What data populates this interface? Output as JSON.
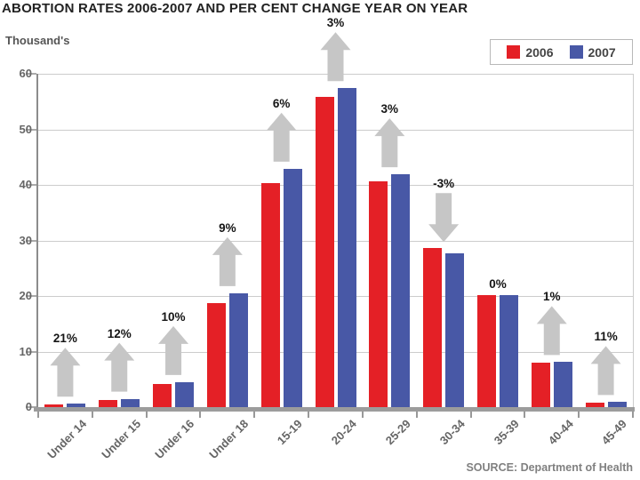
{
  "title": "ABORTION RATES 2006-2007 AND PER CENT CHANGE YEAR ON YEAR",
  "unit_label": "Thousand's",
  "source": "SOURCE: Department of Health",
  "colors": {
    "series_2006": "#e42026",
    "series_2007": "#4858a6",
    "arrow": "#c6c6c6",
    "grid": "#cccccc",
    "axis": "#8c8c8c",
    "baseline": "#9c9c9c"
  },
  "legend": {
    "items": [
      {
        "label": "2006",
        "color": "#e42026"
      },
      {
        "label": "2007",
        "color": "#4858a6"
      }
    ]
  },
  "chart_data": {
    "type": "bar",
    "title": "ABORTION RATES 2006-2007 AND PER CENT CHANGE YEAR ON YEAR",
    "xlabel": "",
    "ylabel": "Thousand's",
    "ylim": [
      0,
      60
    ],
    "yticks": [
      0,
      10,
      20,
      30,
      40,
      50,
      60
    ],
    "grid": true,
    "legend_position": "top-right",
    "categories": [
      "Under 14",
      "Under 15",
      "Under 16",
      "Under 18",
      "15-19",
      "20-24",
      "25-29",
      "30-34",
      "35-39",
      "40-44",
      "45-49"
    ],
    "series": [
      {
        "name": "2006",
        "color": "#e42026",
        "values": [
          0.5,
          1.3,
          4.1,
          18.8,
          40.4,
          55.8,
          40.7,
          28.6,
          20.2,
          8.0,
          0.8
        ]
      },
      {
        "name": "2007",
        "color": "#4858a6",
        "values": [
          0.6,
          1.5,
          4.5,
          20.5,
          42.9,
          57.4,
          41.9,
          27.7,
          20.2,
          8.1,
          0.9
        ]
      }
    ],
    "pct_change": [
      {
        "category": "Under 14",
        "label": "21%",
        "direction": "up"
      },
      {
        "category": "Under 15",
        "label": "12%",
        "direction": "up"
      },
      {
        "category": "Under 16",
        "label": "10%",
        "direction": "up"
      },
      {
        "category": "Under 18",
        "label": "9%",
        "direction": "up"
      },
      {
        "category": "15-19",
        "label": "6%",
        "direction": "up"
      },
      {
        "category": "20-24",
        "label": "3%",
        "direction": "up"
      },
      {
        "category": "25-29",
        "label": "3%",
        "direction": "up"
      },
      {
        "category": "30-34",
        "label": "-3%",
        "direction": "down"
      },
      {
        "category": "35-39",
        "label": "0%",
        "direction": "none"
      },
      {
        "category": "40-44",
        "label": "1%",
        "direction": "up"
      },
      {
        "category": "45-49",
        "label": "11%",
        "direction": "up"
      }
    ]
  }
}
